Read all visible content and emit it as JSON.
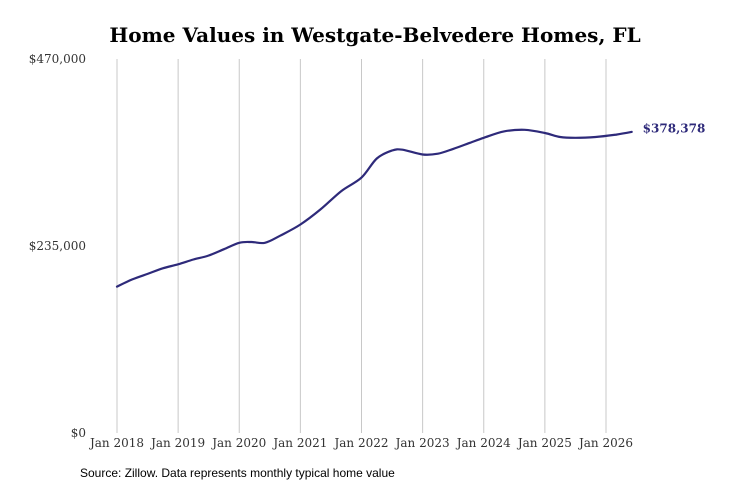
{
  "chart_data": {
    "type": "line",
    "title": "Home Values in Westgate-Belvedere Homes, FL",
    "xlabel": "",
    "ylabel": "",
    "source": "Source: Zillow. Data represents monthly typical home value",
    "ylim": [
      0,
      470000
    ],
    "y_ticks": [
      {
        "value": 0,
        "label": "$0"
      },
      {
        "value": 235000,
        "label": "$235,000"
      },
      {
        "value": 470000,
        "label": "$470,000"
      }
    ],
    "x_range": [
      2018.0,
      2026.7
    ],
    "x_ticks": [
      {
        "value": 2018,
        "label": "Jan 2018"
      },
      {
        "value": 2019,
        "label": "Jan 2019"
      },
      {
        "value": 2020,
        "label": "Jan 2020"
      },
      {
        "value": 2021,
        "label": "Jan 2021"
      },
      {
        "value": 2022,
        "label": "Jan 2022"
      },
      {
        "value": 2023,
        "label": "Jan 2023"
      },
      {
        "value": 2024,
        "label": "Jan 2024"
      },
      {
        "value": 2025,
        "label": "Jan 2025"
      },
      {
        "value": 2026,
        "label": "Jan 2026"
      }
    ],
    "grid": "vertical",
    "color": "#2e2a7a",
    "series": [
      {
        "name": "",
        "end_label": "$378,378",
        "points": [
          {
            "x": 2018.0,
            "y": 184000
          },
          {
            "x": 2018.25,
            "y": 193000
          },
          {
            "x": 2018.5,
            "y": 200000
          },
          {
            "x": 2018.75,
            "y": 207000
          },
          {
            "x": 2019.0,
            "y": 212000
          },
          {
            "x": 2019.25,
            "y": 218000
          },
          {
            "x": 2019.5,
            "y": 223000
          },
          {
            "x": 2019.75,
            "y": 231000
          },
          {
            "x": 2020.0,
            "y": 239000
          },
          {
            "x": 2020.2,
            "y": 240000
          },
          {
            "x": 2020.42,
            "y": 239000
          },
          {
            "x": 2020.67,
            "y": 248000
          },
          {
            "x": 2021.0,
            "y": 262000
          },
          {
            "x": 2021.33,
            "y": 281000
          },
          {
            "x": 2021.67,
            "y": 304000
          },
          {
            "x": 2022.0,
            "y": 321000
          },
          {
            "x": 2022.25,
            "y": 345000
          },
          {
            "x": 2022.5,
            "y": 355000
          },
          {
            "x": 2022.67,
            "y": 356000
          },
          {
            "x": 2023.0,
            "y": 350000
          },
          {
            "x": 2023.25,
            "y": 351000
          },
          {
            "x": 2023.5,
            "y": 357000
          },
          {
            "x": 2023.75,
            "y": 364000
          },
          {
            "x": 2024.0,
            "y": 371000
          },
          {
            "x": 2024.33,
            "y": 379000
          },
          {
            "x": 2024.67,
            "y": 381000
          },
          {
            "x": 2025.0,
            "y": 377000
          },
          {
            "x": 2025.25,
            "y": 372000
          },
          {
            "x": 2025.5,
            "y": 371000
          },
          {
            "x": 2025.83,
            "y": 372000
          },
          {
            "x": 2026.17,
            "y": 375000
          },
          {
            "x": 2026.42,
            "y": 378378
          }
        ]
      }
    ]
  }
}
